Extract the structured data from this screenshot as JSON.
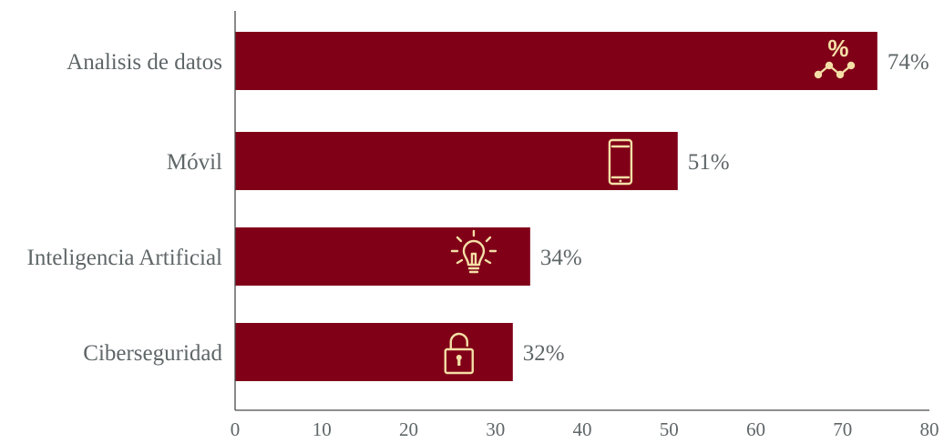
{
  "chart_data": {
    "type": "bar",
    "orientation": "horizontal",
    "categories": [
      "Analisis de datos",
      "Móvil",
      "Inteligencia Artificial",
      "Ciberseguridad"
    ],
    "values": [
      74,
      51,
      34,
      32
    ],
    "value_labels": [
      "74%",
      "51%",
      "34%",
      "32%"
    ],
    "icons": [
      "percent-chart-icon",
      "smartphone-icon",
      "lightbulb-icon",
      "padlock-icon"
    ],
    "xlim": [
      0,
      80
    ],
    "x_ticks": [
      0,
      10,
      20,
      30,
      40,
      50,
      60,
      70,
      80
    ],
    "title": "",
    "xlabel": "",
    "ylabel": "",
    "grid": false,
    "legend": "none",
    "bar_color": "#800018",
    "icon_color": "#f4dfa6",
    "text_color": "#5f6668"
  }
}
